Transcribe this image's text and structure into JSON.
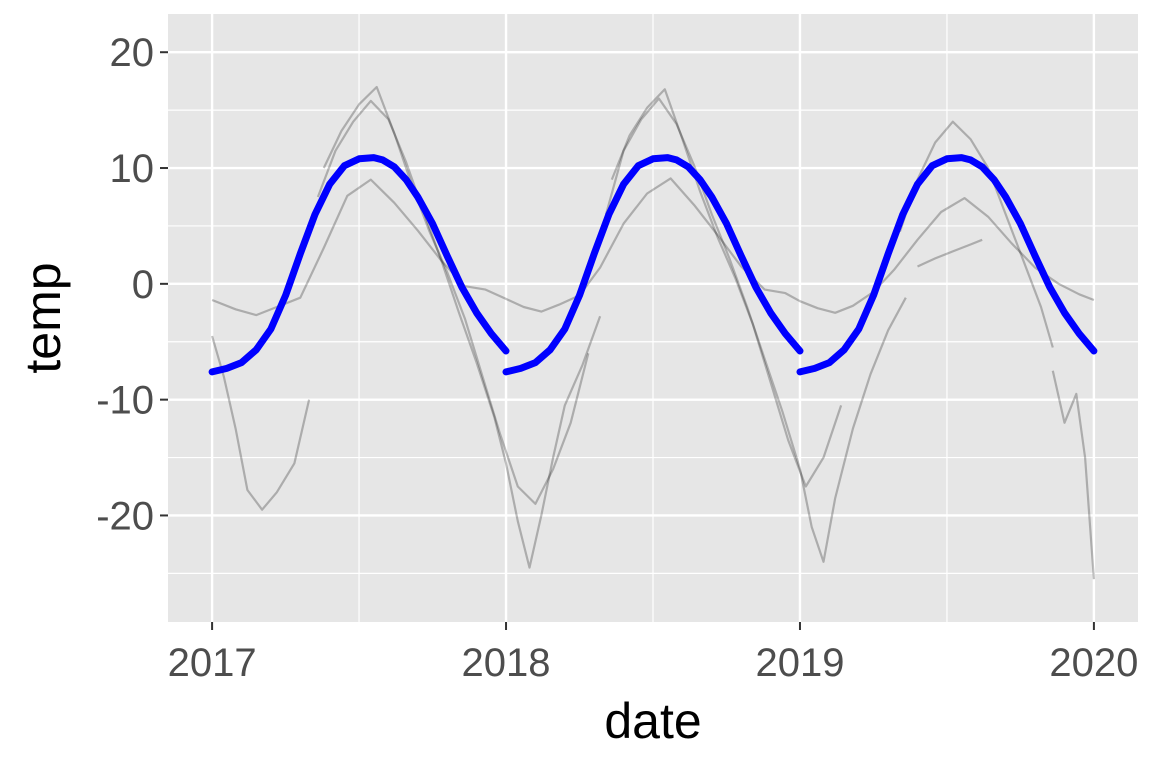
{
  "chart_data": {
    "type": "line",
    "xlabel": "date",
    "ylabel": "temp",
    "xlim": [
      2016.85,
      2020.15
    ],
    "ylim": [
      -29.2,
      23.3
    ],
    "x_ticks": [
      2017,
      2018,
      2019,
      2020
    ],
    "x_tick_labels": [
      "2017",
      "2018",
      "2019",
      "2020"
    ],
    "y_ticks": [
      -20,
      -10,
      0,
      10,
      20
    ],
    "y_tick_labels": [
      "-20",
      "-10",
      "0",
      "10",
      "20"
    ],
    "y_minor_ticks": [
      -25,
      -15,
      -5,
      5,
      15
    ],
    "grid": true,
    "panel_color": "#e6e6e6",
    "grid_color": "#ffffff",
    "observed_color": "#000000",
    "fit_color": "#0000ff",
    "series": [
      {
        "role": "fit",
        "segments": [
          {
            "x": [
              2017.0,
              2017.05,
              2017.1,
              2017.15,
              2017.2,
              2017.25,
              2017.3,
              2017.35,
              2017.4,
              2017.45,
              2017.5,
              2017.55,
              2017.58,
              2017.62,
              2017.66,
              2017.7,
              2017.75,
              2017.8,
              2017.85,
              2017.9,
              2017.95,
              2018.0
            ],
            "y": [
              -7.6,
              -7.3,
              -6.8,
              -5.7,
              -3.9,
              -1.0,
              2.6,
              6.0,
              8.6,
              10.2,
              10.8,
              10.9,
              10.7,
              10.1,
              9.0,
              7.5,
              5.2,
              2.4,
              -0.3,
              -2.5,
              -4.3,
              -5.8
            ]
          },
          {
            "x": [
              2018.0,
              2018.05,
              2018.1,
              2018.15,
              2018.2,
              2018.25,
              2018.3,
              2018.35,
              2018.4,
              2018.45,
              2018.5,
              2018.55,
              2018.58,
              2018.62,
              2018.66,
              2018.7,
              2018.75,
              2018.8,
              2018.85,
              2018.9,
              2018.95,
              2019.0
            ],
            "y": [
              -7.6,
              -7.3,
              -6.8,
              -5.7,
              -3.9,
              -1.0,
              2.6,
              6.0,
              8.6,
              10.2,
              10.8,
              10.9,
              10.7,
              10.1,
              9.0,
              7.5,
              5.2,
              2.4,
              -0.3,
              -2.5,
              -4.3,
              -5.8
            ]
          },
          {
            "x": [
              2019.0,
              2019.05,
              2019.1,
              2019.15,
              2019.2,
              2019.25,
              2019.3,
              2019.35,
              2019.4,
              2019.45,
              2019.5,
              2019.55,
              2019.58,
              2019.62,
              2019.66,
              2019.7,
              2019.75,
              2019.8,
              2019.85,
              2019.9,
              2019.95,
              2020.0
            ],
            "y": [
              -7.6,
              -7.3,
              -6.8,
              -5.7,
              -3.9,
              -1.0,
              2.6,
              6.0,
              8.6,
              10.2,
              10.8,
              10.9,
              10.7,
              10.1,
              9.0,
              7.5,
              5.2,
              2.4,
              -0.3,
              -2.5,
              -4.3,
              -5.8
            ]
          }
        ]
      },
      {
        "role": "observed",
        "x": [
          2017.0,
          2017.08,
          2017.15,
          2017.22,
          2017.3,
          2017.38,
          2017.46,
          2017.54,
          2017.62,
          2017.7,
          2017.78,
          2017.86,
          2017.93,
          2018.0,
          2018.06,
          2018.12,
          2018.18,
          2018.25,
          2018.32,
          2018.4,
          2018.48,
          2018.56,
          2018.64,
          2018.72,
          2018.8,
          2018.88,
          2018.95,
          2019.0,
          2019.06,
          2019.12,
          2019.18,
          2019.25,
          2019.32,
          2019.4,
          2019.48,
          2019.56,
          2019.64,
          2019.72,
          2019.8,
          2019.88,
          2019.95,
          2020.0
        ],
        "y": [
          -1.4,
          -2.2,
          -2.7,
          -2.0,
          -1.2,
          3.1,
          7.6,
          9.0,
          7.0,
          4.6,
          2.0,
          -0.2,
          -0.5,
          -1.3,
          -2.0,
          -2.4,
          -1.8,
          -1.0,
          1.4,
          5.2,
          7.8,
          9.1,
          6.8,
          4.2,
          1.5,
          -0.5,
          -0.8,
          -1.5,
          -2.1,
          -2.5,
          -1.9,
          -0.7,
          1.2,
          3.8,
          6.2,
          7.4,
          5.8,
          3.5,
          1.4,
          0.0,
          -0.9,
          -1.4
        ]
      },
      {
        "role": "observed",
        "x": [
          2017.0,
          2017.04,
          2017.08,
          2017.12,
          2017.17,
          2017.22,
          2017.28,
          2017.33
        ],
        "y": [
          -4.5,
          -8.0,
          -12.5,
          -17.8,
          -19.5,
          -18.0,
          -15.5,
          -10.0
        ]
      },
      {
        "role": "observed",
        "x": [
          2017.36,
          2017.42,
          2017.48,
          2017.54,
          2017.6,
          2017.66,
          2017.72,
          2017.78,
          2017.84,
          2017.9,
          2017.96,
          2018.0,
          2018.04,
          2018.08,
          2018.12,
          2018.16,
          2018.2,
          2018.26,
          2018.32
        ],
        "y": [
          7.5,
          11.5,
          14.0,
          15.8,
          14.2,
          10.5,
          6.2,
          2.0,
          -2.5,
          -6.8,
          -11.5,
          -15.5,
          -20.5,
          -24.5,
          -20.0,
          -15.0,
          -10.5,
          -7.0,
          -2.8
        ]
      },
      {
        "role": "observed",
        "x": [
          2017.38,
          2017.44,
          2017.5,
          2017.56,
          2017.62,
          2017.68,
          2017.74,
          2017.8,
          2017.86,
          2017.92,
          2017.98,
          2018.04,
          2018.1,
          2018.16,
          2018.22,
          2018.28
        ],
        "y": [
          10.0,
          13.2,
          15.5,
          17.0,
          13.0,
          8.5,
          4.5,
          1.0,
          -3.0,
          -8.0,
          -13.0,
          -17.5,
          -19.0,
          -16.0,
          -12.0,
          -6.0
        ]
      },
      {
        "role": "observed",
        "x": [
          2018.34,
          2018.4,
          2018.46,
          2018.52,
          2018.58,
          2018.64,
          2018.7,
          2018.76,
          2018.82,
          2018.88,
          2018.94,
          2019.0,
          2019.04,
          2019.08,
          2019.12,
          2019.18,
          2019.24,
          2019.3,
          2019.36
        ],
        "y": [
          6.0,
          11.5,
          14.2,
          16.0,
          13.8,
          10.2,
          6.0,
          2.2,
          -2.0,
          -6.5,
          -11.0,
          -16.0,
          -21.0,
          -24.0,
          -18.5,
          -12.5,
          -7.8,
          -4.0,
          -1.2
        ]
      },
      {
        "role": "observed",
        "x": [
          2018.36,
          2018.42,
          2018.48,
          2018.54,
          2018.6,
          2018.66,
          2018.72,
          2018.78,
          2018.84,
          2018.9,
          2018.96,
          2019.02,
          2019.08,
          2019.14
        ],
        "y": [
          9.0,
          12.8,
          15.2,
          16.8,
          12.5,
          8.0,
          4.0,
          0.5,
          -3.5,
          -8.5,
          -13.5,
          -17.5,
          -15.0,
          -10.5
        ]
      },
      {
        "role": "observed",
        "x": [
          2019.4,
          2019.46,
          2019.52,
          2019.58,
          2019.62
        ],
        "y": [
          1.5,
          2.2,
          2.8,
          3.4,
          3.8
        ]
      },
      {
        "role": "observed",
        "x": [
          2019.34,
          2019.4,
          2019.46,
          2019.52,
          2019.58,
          2019.64,
          2019.7,
          2019.76,
          2019.82,
          2019.86
        ],
        "y": [
          4.5,
          9.0,
          12.2,
          14.0,
          12.5,
          10.0,
          6.0,
          2.0,
          -2.0,
          -5.5
        ]
      },
      {
        "role": "observed",
        "x": [
          2019.86,
          2019.9,
          2019.94,
          2019.97,
          2020.0
        ],
        "y": [
          -7.5,
          -12.0,
          -9.5,
          -15.0,
          -25.5
        ]
      }
    ]
  }
}
